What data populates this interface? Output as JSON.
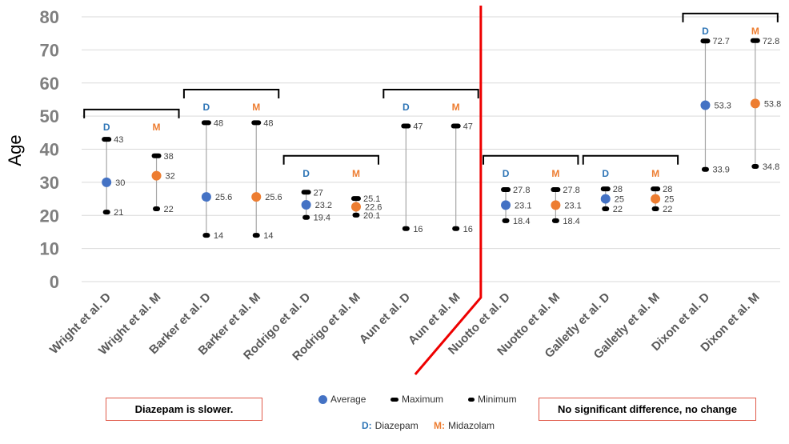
{
  "chart_data": {
    "type": "scatter",
    "ylabel": "Age",
    "ylim": [
      0,
      80
    ],
    "yticks": [
      "0",
      "10",
      "20",
      "30",
      "40",
      "50",
      "60",
      "70",
      "80"
    ],
    "categories": [
      "Wright et al. D",
      "Wright et al. M",
      "Barker et al. D",
      "Barker et al. M",
      "Rodrigo et al. D",
      "Rodrigo et al. M",
      "Aun et al. D",
      "Aun et al. M",
      "Nuotto et al. D",
      "Nuotto et al. M",
      "Galletly et al. D",
      "Galletly et al. M",
      "Dixon et al. D",
      "Dixon et al. M"
    ],
    "points": [
      {
        "drug": "D",
        "average": 30,
        "average_label": "30",
        "maximum": 43,
        "maximum_label": "43",
        "minimum": 21,
        "minimum_label": "21"
      },
      {
        "drug": "M",
        "average": 32,
        "average_label": "32",
        "maximum": 38,
        "maximum_label": "38",
        "minimum": 22,
        "minimum_label": "22"
      },
      {
        "drug": "D",
        "average": 25.6,
        "average_label": "25.6",
        "maximum": 48,
        "maximum_label": "48",
        "minimum": 14,
        "minimum_label": "14"
      },
      {
        "drug": "M",
        "average": 25.6,
        "average_label": "25.6",
        "maximum": 48,
        "maximum_label": "48",
        "minimum": 14,
        "minimum_label": "14"
      },
      {
        "drug": "D",
        "average": 23.2,
        "average_label": "23.2",
        "maximum": 27,
        "maximum_label": "27",
        "minimum": 19.4,
        "minimum_label": "19.4"
      },
      {
        "drug": "M",
        "average": 22.6,
        "average_label": "22.6",
        "maximum": 25.1,
        "maximum_label": "25.1",
        "minimum": 20.1,
        "minimum_label": "20.1"
      },
      {
        "drug": "D",
        "average": null,
        "average_label": "",
        "maximum": 47,
        "maximum_label": "47",
        "minimum": 16,
        "minimum_label": "16"
      },
      {
        "drug": "M",
        "average": null,
        "average_label": "",
        "maximum": 47,
        "maximum_label": "47",
        "minimum": 16,
        "minimum_label": "16"
      },
      {
        "drug": "D",
        "average": 23.1,
        "average_label": "23.1",
        "maximum": 27.8,
        "maximum_label": "27.8",
        "minimum": 18.4,
        "minimum_label": "18.4"
      },
      {
        "drug": "M",
        "average": 23.1,
        "average_label": "23.1",
        "maximum": 27.8,
        "maximum_label": "27.8",
        "minimum": 18.4,
        "minimum_label": "18.4"
      },
      {
        "drug": "D",
        "average": 25,
        "average_label": "25",
        "maximum": 28,
        "maximum_label": "28",
        "minimum": 22,
        "minimum_label": "22"
      },
      {
        "drug": "M",
        "average": 25,
        "average_label": "25",
        "maximum": 28,
        "maximum_label": "28",
        "minimum": 22,
        "minimum_label": "22"
      },
      {
        "drug": "D",
        "average": 53.3,
        "average_label": "53.3",
        "maximum": 72.7,
        "maximum_label": "72.7",
        "minimum": 33.9,
        "minimum_label": "33.9"
      },
      {
        "drug": "M",
        "average": 53.8,
        "average_label": "53.8",
        "maximum": 72.8,
        "maximum_label": "72.8",
        "minimum": 34.8,
        "minimum_label": "34.8"
      }
    ],
    "brackets": [
      {
        "pair": [
          0,
          1
        ],
        "top": 52
      },
      {
        "pair": [
          2,
          3
        ],
        "top": 58
      },
      {
        "pair": [
          4,
          5
        ],
        "top": 38
      },
      {
        "pair": [
          6,
          7
        ],
        "top": 58
      },
      {
        "pair": [
          8,
          9
        ],
        "top": 38
      },
      {
        "pair": [
          10,
          11
        ],
        "top": 38
      },
      {
        "pair": [
          12,
          13
        ],
        "top": 81
      }
    ],
    "group_divider_after_index": 7,
    "colors": {
      "D": "#4472c4",
      "M": "#ed7d31",
      "D_letter": "#2e75b6",
      "M_letter": "#ed7d31",
      "range": "#a6a6a6",
      "divider": "#ee0000"
    }
  },
  "notes": {
    "left": "Diazepam is slower.",
    "right": "No significant difference, no change"
  },
  "legend": {
    "average": "Average",
    "maximum": "Maximum",
    "minimum": "Minimum",
    "d_abbrev": "D:",
    "d_name": "Diazepam",
    "m_abbrev": "M:",
    "m_name": "Midazolam"
  }
}
